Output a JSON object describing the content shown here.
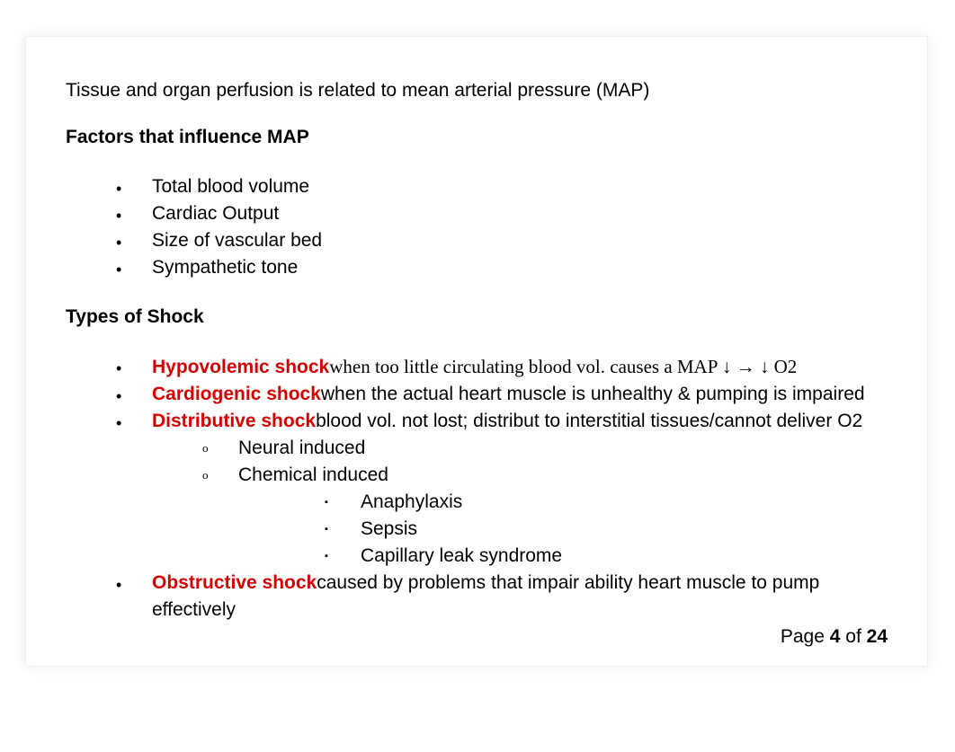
{
  "colors": {
    "text": "#000000",
    "term": "#d40000",
    "background": "#ffffff",
    "page_border": "#f0f0f0",
    "page_shadow": "rgba(0,0,0,0.08)"
  },
  "typography": {
    "body_font": "Helvetica, Arial, sans-serif",
    "serif_font": "Times New Roman, Times, serif",
    "body_fontsize_pt": 16,
    "heading_fontweight": 700,
    "term_fontweight": 700
  },
  "intro": "Tissue and organ perfusion is related to mean arterial pressure (MAP)",
  "sections": {
    "map_factors": {
      "heading": "Factors that influence MAP",
      "items": [
        "Total blood volume",
        "Cardiac Output",
        "Size of vascular bed",
        "Sympathetic tone"
      ]
    },
    "shock_types": {
      "heading": "Types of Shock",
      "items": [
        {
          "term": "Hypovolemic shock",
          "desc": "when too little circulating blood vol. causes a MAP ↓ → ↓ O2",
          "desc_serif": true
        },
        {
          "term": "Cardiogenic shock",
          "desc": "when the actual heart muscle is unhealthy & pumping is impaired"
        },
        {
          "term": "Distributive shock",
          "desc": "blood vol. not lost; distribut to interstitial tissues/cannot deliver O2",
          "sub": [
            {
              "label": "Neural induced"
            },
            {
              "label": "Chemical induced",
              "sub": [
                "Anaphylaxis",
                "Sepsis",
                "Capillary leak syndrome"
              ]
            }
          ]
        },
        {
          "term": "Obstructive shock",
          "desc": "caused by problems that impair ability heart muscle to pump effectively"
        }
      ]
    }
  },
  "pager": {
    "prefix": "Page ",
    "current": "4",
    "separator": " of ",
    "total": "24"
  }
}
